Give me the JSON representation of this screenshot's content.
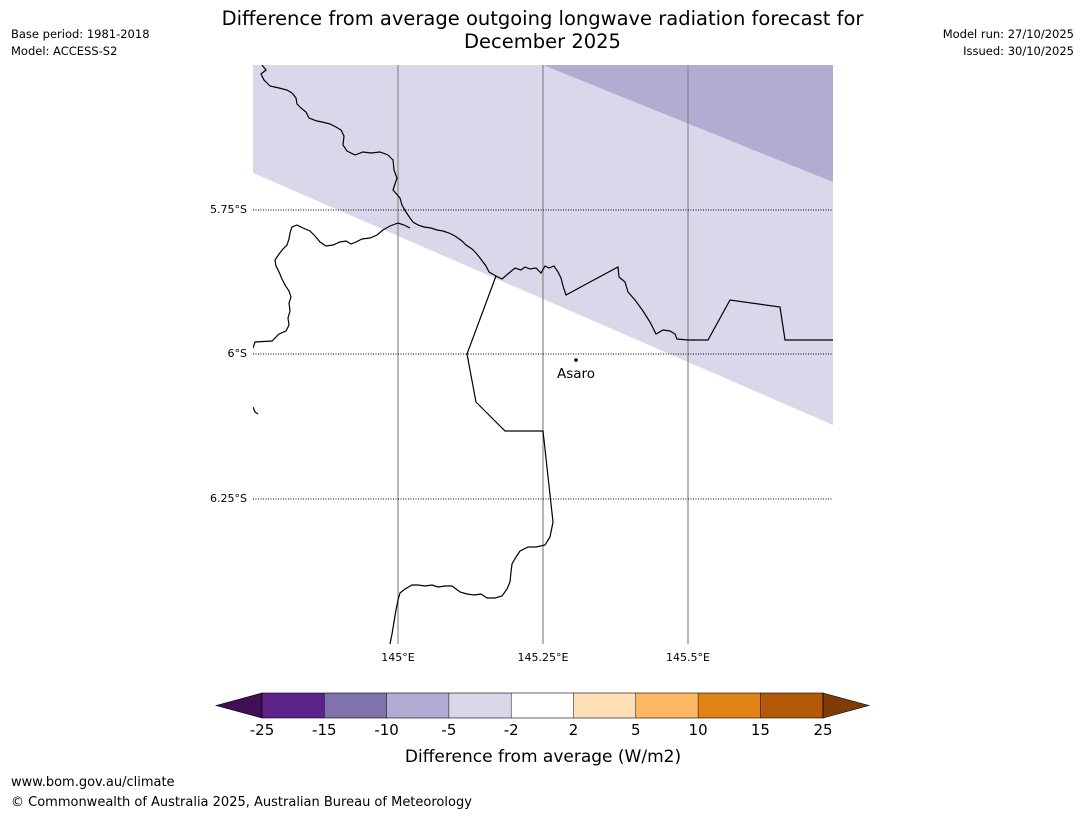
{
  "title_line1": "Difference from average outgoing longwave radiation forecast for",
  "title_line2": "December 2025",
  "meta_left": {
    "base_period": "Base period: 1981-2018",
    "model": "Model: ACCESS-S2"
  },
  "meta_right": {
    "model_run": "Model run: 27/10/2025",
    "issued": "Issued: 30/10/2025"
  },
  "map": {
    "lat_labels": [
      "5.75°S",
      "6°S",
      "6.25°S"
    ],
    "lon_labels": [
      "145°E",
      "145.25°E",
      "145.5°E"
    ],
    "place": {
      "name": "Asaro"
    },
    "colors": {
      "minus2_to_minus5": "#d8d8ea",
      "minus5_to_minus10": "#b2abd2"
    }
  },
  "colorbar": {
    "ticks": [
      "-25",
      "-15",
      "-10",
      "-5",
      "-2",
      "2",
      "5",
      "10",
      "15",
      "25"
    ],
    "colors": [
      "#3f0f55",
      "#5b2287",
      "#8073ac",
      "#b2abd2",
      "#d8d8ea",
      "#ffffff",
      "#fee0b6",
      "#fdb863",
      "#e08214",
      "#b35806",
      "#7f3b08"
    ],
    "label": "Difference from average (W/m2)"
  },
  "footer": {
    "url": "www.bom.gov.au/climate",
    "copyright": "© Commonwealth of Australia 2025, Australian Bureau of Meteorology"
  }
}
